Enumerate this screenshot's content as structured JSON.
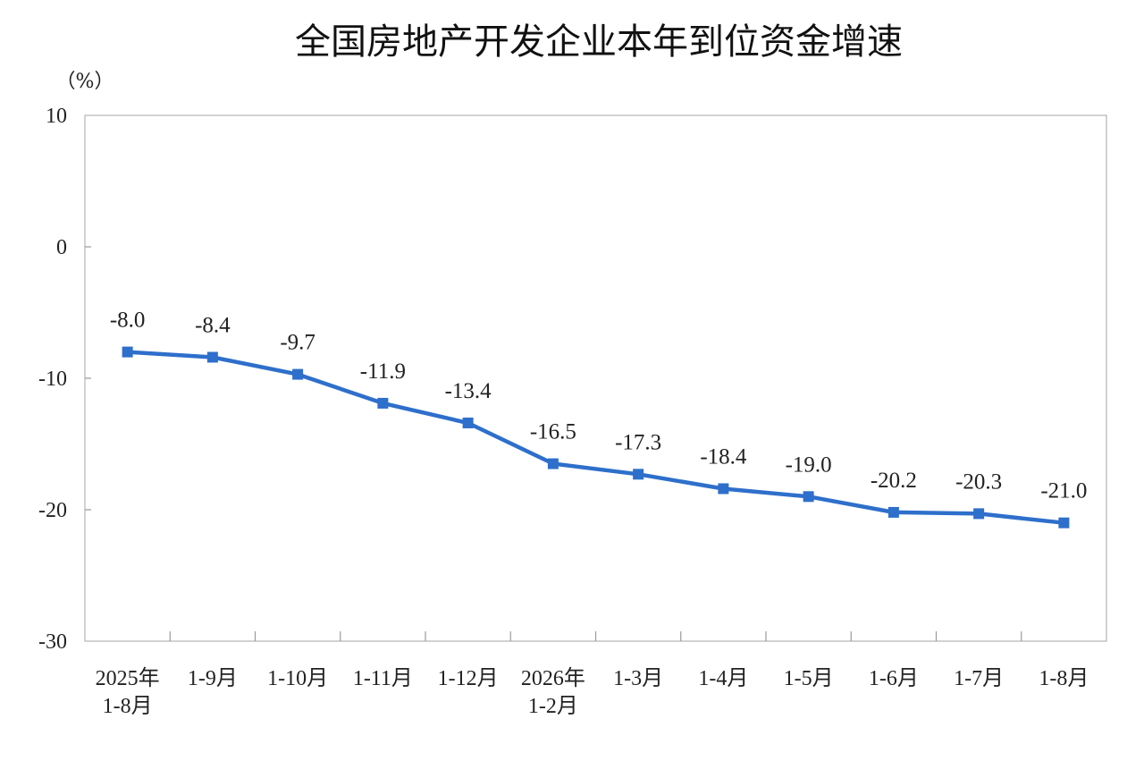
{
  "chart_data": {
    "type": "line",
    "title": "全国房地产开发企业本年到位资金增速",
    "unit_label": "（%）",
    "categories": [
      [
        "2025年",
        "1-8月"
      ],
      [
        "1-9月"
      ],
      [
        "1-10月"
      ],
      [
        "1-11月"
      ],
      [
        "1-12月"
      ],
      [
        "2026年",
        "1-2月"
      ],
      [
        "1-3月"
      ],
      [
        "1-4月"
      ],
      [
        "1-5月"
      ],
      [
        "1-6月"
      ],
      [
        "1-7月"
      ],
      [
        "1-8月"
      ]
    ],
    "series": [
      {
        "values": [
          -8.0,
          -8.4,
          -9.7,
          -11.9,
          -13.4,
          -16.5,
          -17.3,
          -18.4,
          -19.0,
          -20.2,
          -20.3,
          -21.0
        ],
        "labels": [
          "-8.0",
          "-8.4",
          "-9.7",
          "-11.9",
          "-13.4",
          "-16.5",
          "-17.3",
          "-18.4",
          "-19.0",
          "-20.2",
          "-20.3",
          "-21.0"
        ],
        "color": "#2e6fcb"
      }
    ],
    "yticks": [
      10,
      0,
      -10,
      -20,
      -30
    ],
    "ylim": [
      -30,
      10
    ],
    "grid": false,
    "legend": "none"
  }
}
